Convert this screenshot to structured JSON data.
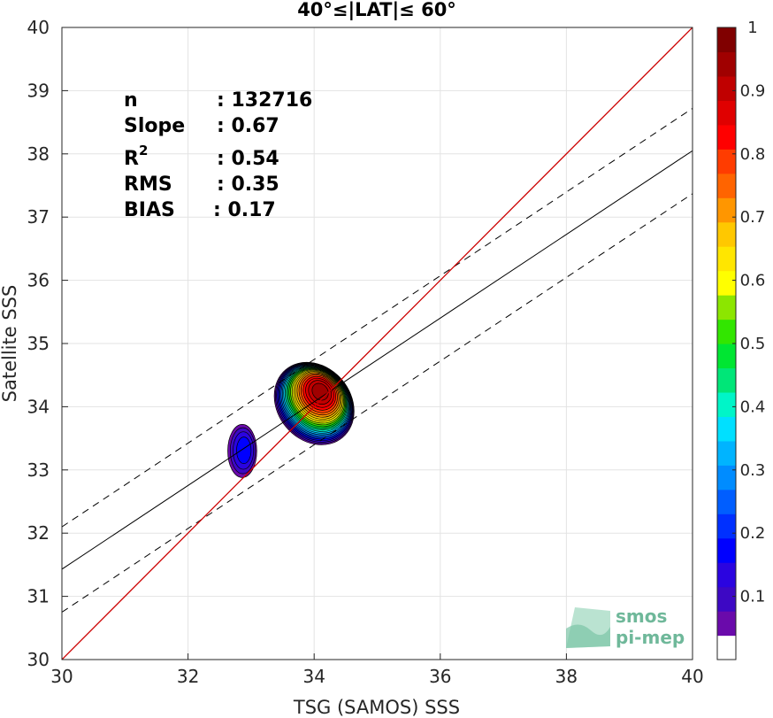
{
  "chart_data": {
    "type": "scatter",
    "title": "40°≤|LAT|≤ 60°",
    "xlabel": "TSG (SAMOS) SSS",
    "ylabel": "Satellite SSS",
    "xlim": [
      30,
      40
    ],
    "ylim": [
      30,
      40
    ],
    "xticks": [
      "30",
      "32",
      "34",
      "36",
      "38",
      "40"
    ],
    "yticks": [
      "30",
      "31",
      "32",
      "33",
      "34",
      "35",
      "36",
      "37",
      "38",
      "39",
      "40"
    ],
    "grid": true,
    "stats": {
      "n_label": "n",
      "n_value": ": 132716",
      "slope_label": "Slope",
      "slope_value": ": 0.67",
      "r2_label": "R",
      "r2_sup": "2",
      "r2_value": ": 0.54",
      "rms_label": "RMS",
      "rms_value": ": 0.35",
      "bias_label": "BIAS",
      "bias_value": ": 0.17"
    },
    "lines": {
      "identity": {
        "x": [
          30,
          40
        ],
        "y": [
          30,
          40
        ],
        "color": "#cc0000"
      },
      "fit": {
        "x": [
          30,
          40
        ],
        "y": [
          31.43,
          38.05
        ],
        "color": "#000000"
      },
      "fit_upper": {
        "x": [
          30,
          40
        ],
        "y": [
          32.1,
          38.72
        ],
        "style": "dashed"
      },
      "fit_lower": {
        "x": [
          30,
          40
        ],
        "y": [
          30.75,
          37.37
        ],
        "style": "dashed"
      }
    },
    "density_clusters": [
      {
        "center": [
          34.0,
          34.05
        ],
        "semi_x": 0.58,
        "semi_y": 0.7,
        "rotation_deg": -40,
        "peak": 1.0
      },
      {
        "center": [
          32.86,
          33.3
        ],
        "semi_x": 0.23,
        "semi_y": 0.42,
        "rotation_deg": 0,
        "peak": 0.15
      }
    ],
    "colorbar": {
      "range": [
        0,
        1
      ],
      "ticks": [
        "0.1",
        "0.2",
        "0.3",
        "0.4",
        "0.5",
        "0.6",
        "0.7",
        "0.8",
        "0.9",
        "1"
      ],
      "colors": [
        "#ffffff",
        "#6a0aab",
        "#3d08c4",
        "#2b04e0",
        "#0000ff",
        "#0030ff",
        "#005eff",
        "#008cff",
        "#00b4ff",
        "#00e0ff",
        "#00f5c8",
        "#00e678",
        "#00e632",
        "#32e600",
        "#8ce600",
        "#ffff00",
        "#ffe600",
        "#ffc800",
        "#ff9600",
        "#ff6400",
        "#ff3c00",
        "#ff0000",
        "#e00000",
        "#c00000",
        "#a00000",
        "#800000"
      ]
    },
    "watermark": {
      "line1": "smos",
      "line2": "pi-mep"
    }
  }
}
